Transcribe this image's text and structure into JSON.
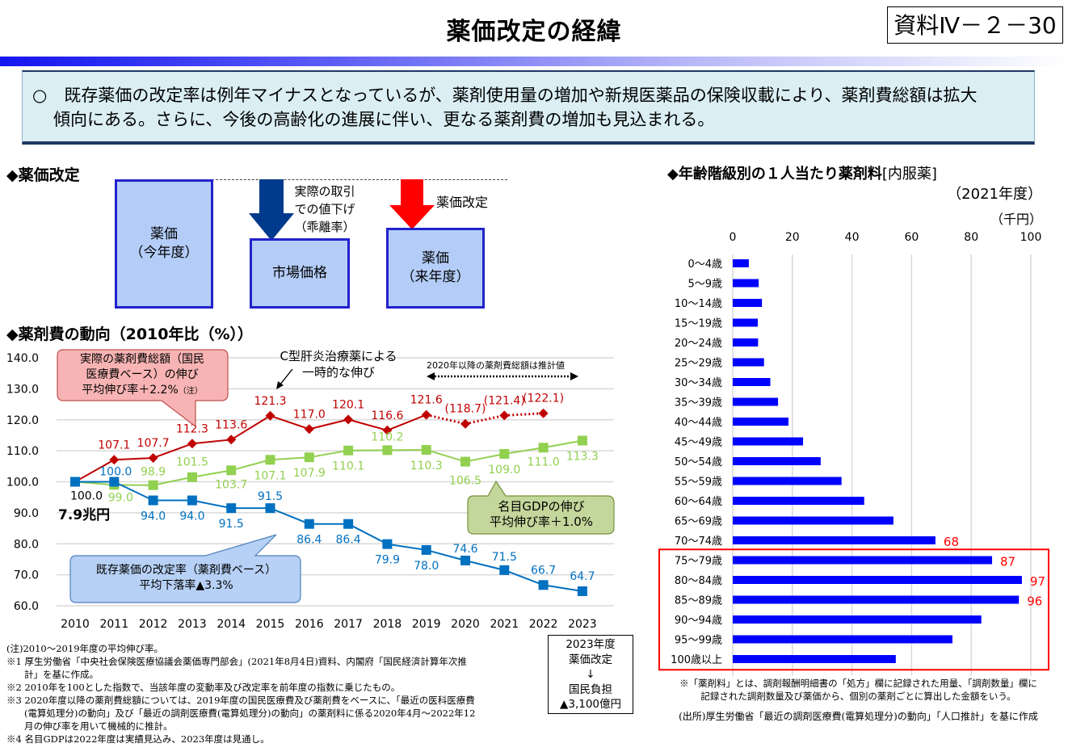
{
  "header": {
    "title": "薬価改定の経緯",
    "doc_number": "資料Ⅳ－２－30"
  },
  "summary": {
    "line1": "○　既存薬価の改定率は例年マイナスとなっているが、薬剤使用量の増加や新規医薬品の保険収載により、薬剤費総額は拡大",
    "line2": "傾向にある。さらに、今後の高齢化の進展に伴い、更なる薬剤費の増加も見込まれる。"
  },
  "revision_diagram": {
    "heading": "◆薬価改定",
    "box_current_line1": "薬価",
    "box_current_line2": "（今年度）",
    "arrow1_line1": "実際の取引",
    "arrow1_line2": "での値下げ",
    "arrow1_line3": "（乖離率）",
    "box_market": "市場価格",
    "arrow2_label": "薬価改定",
    "box_next_line1": "薬価",
    "box_next_line2": "（来年度）",
    "colors": {
      "down_arrow_blue": "#003a8c",
      "down_arrow_red": "#ff0000",
      "box_fill": "#b4cdf8",
      "box_border": "#2222cc"
    }
  },
  "line_chart_section": {
    "heading": "◆薬剤費の動向（2010年比（%））",
    "base_amount": "7.9兆円",
    "callout_red_line1": "実際の薬剤費総額（国民",
    "callout_red_line2": "医療費ベース）の伸び",
    "callout_red_line3": "平均伸び率＋2.2%",
    "callout_red_note": "（注）",
    "annotation_hepc_line1": "C型肝炎治療薬による",
    "annotation_hepc_line2": "一時的な伸び",
    "estimate_label": "2020年以降の薬剤費総額は推計値",
    "callout_green_line1": "名目GDPの伸び",
    "callout_green_line2": "平均伸び率＋1.0%",
    "callout_blue_line1": "既存薬価の改定率（薬剤費ベース）",
    "callout_blue_line2": "平均下落率▲3.3%"
  },
  "chart_data": [
    {
      "type": "line",
      "title": "薬剤費の動向（2010年比（%））",
      "xlabel": "",
      "ylabel": "",
      "x": [
        "2010",
        "2011",
        "2012",
        "2013",
        "2014",
        "2015",
        "2016",
        "2017",
        "2018",
        "2019",
        "2020",
        "2021",
        "2022",
        "2023"
      ],
      "ylim": [
        60,
        140
      ],
      "yticks": [
        "60.0",
        "70.0",
        "80.0",
        "90.0",
        "100.0",
        "110.0",
        "120.0",
        "130.0",
        "140.0"
      ],
      "grid": true,
      "series": [
        {
          "name": "実際の薬剤費総額（国民医療費ベース）",
          "color": "#c00000",
          "marker": "diamond",
          "values": [
            100.0,
            107.1,
            107.7,
            112.3,
            113.6,
            121.3,
            117.0,
            120.1,
            116.6,
            121.6,
            118.7,
            121.4,
            122.1,
            null
          ],
          "labels": [
            "",
            "107.1",
            "107.7",
            "112.3",
            "113.6",
            "121.3",
            "117.0",
            "120.1",
            "116.6",
            "121.6",
            "(118.7)",
            "(121.4)",
            "(122.1)",
            ""
          ],
          "estimated_from": "2020"
        },
        {
          "name": "名目GDP",
          "color": "#92d050",
          "marker": "square",
          "values": [
            100.0,
            99.0,
            98.9,
            101.5,
            103.7,
            107.1,
            107.9,
            110.1,
            110.2,
            110.3,
            106.5,
            109.0,
            111.0,
            113.3
          ],
          "labels": [
            "",
            "99.0",
            "98.9",
            "101.5",
            "103.7",
            "107.1",
            "107.9",
            "110.1",
            "110.2",
            "110.3",
            "106.5",
            "109.0",
            "111.0",
            "113.3"
          ]
        },
        {
          "name": "既存薬価の改定率（薬剤費ベース）",
          "color": "#0070c0",
          "marker": "square",
          "values": [
            100.0,
            100.0,
            94.0,
            94.0,
            91.5,
            91.5,
            86.4,
            86.4,
            79.9,
            78.0,
            74.6,
            71.5,
            66.7,
            64.7
          ],
          "labels": [
            "100.0",
            "100.0",
            "94.0",
            "94.0",
            "91.5",
            "91.5",
            "86.4",
            "86.4",
            "79.9",
            "78.0",
            "74.6",
            "71.5",
            "66.7",
            "64.7"
          ]
        }
      ]
    },
    {
      "type": "bar",
      "orientation": "horizontal",
      "title": "◆年齢階級別の１人当たり薬剤料",
      "title_suffix": "[内服薬]",
      "subtitle": "（2021年度）",
      "unit": "（千円）",
      "xlim": [
        0,
        100
      ],
      "xticks": [
        "0",
        "20",
        "40",
        "60",
        "80",
        "100"
      ],
      "grid": true,
      "color": "#0000ff",
      "label_color": "#ff0000",
      "categories": [
        "0～4歳",
        "5～9歳",
        "10～14歳",
        "15～19歳",
        "20～24歳",
        "25～29歳",
        "30～34歳",
        "35～39歳",
        "40～44歳",
        "45～49歳",
        "50～54歳",
        "55～59歳",
        "60～64歳",
        "65～69歳",
        "70～74歳",
        "75～79歳",
        "80～84歳",
        "85～89歳",
        "90～94歳",
        "95～99歳",
        "100歳以上"
      ],
      "values": [
        5.4,
        8.7,
        9.8,
        8.4,
        8.5,
        10.5,
        12.6,
        15.2,
        18.7,
        23.6,
        29.5,
        36.5,
        44.1,
        53.9,
        68,
        87,
        97,
        96,
        83.4,
        73.7,
        54.7
      ],
      "data_labels": [
        "",
        "",
        "",
        "",
        "",
        "",
        "",
        "",
        "",
        "",
        "",
        "",
        "",
        "",
        "68",
        "87",
        "97",
        "96",
        "",
        "",
        ""
      ],
      "highlight_range": [
        "75～79歳",
        "100歳以上"
      ]
    }
  ],
  "notes": {
    "n0": "(注)2010～2019年度の平均伸び率。",
    "n1a": "※1 厚生労働省「中央社会保険医療協議会薬価専門部会」(2021年8月4日)資料、内閣府「国民経済計算年次推",
    "n1b": "計」を基に作成。",
    "n2": "※2 2010年を100とした指数で、当該年度の変動率及び改定率を前年度の指数に乗じたもの。",
    "n3a": "※3 2020年度以降の薬剤費総額については、2019年度の国民医療費及び薬剤費をベースに、「最近の医科医療費",
    "n3b": "(電算処理分)の動向」及び「最近の調剤医療費(電算処理分)の動向」の薬剤料に係る2020年4月～2022年12",
    "n3c": "月の伸び率を用いて機械的に推計。",
    "n4": "※4 名目GDPは2022年度は実績見込み、2023年度は見通し。"
  },
  "burden_box": {
    "line1": "2023年度",
    "line2": "薬価改定",
    "line3": "↓",
    "line4": "国民負担",
    "line5": "▲3,100億円"
  },
  "right_notes": {
    "def1": "※「薬剤料」とは、調剤報酬明細書の「処方」欄に記録された用量、「調剤数量」欄に",
    "def2": "記録された調剤数量及び薬価から、個別の薬剤ごとに算出した金額をいう。",
    "source": "(出所)厚生労働省「最近の調剤医療費(電算処理分)の動向」「人口推計」を基に作成"
  }
}
